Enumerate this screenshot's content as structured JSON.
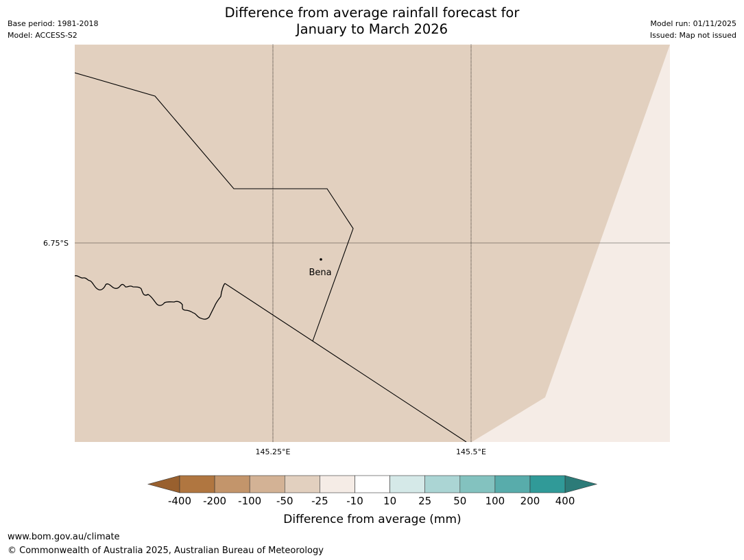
{
  "header": {
    "title_line1": "Difference from average rainfall forecast for",
    "title_line2": "January to March 2026",
    "base_period": "Base period: 1981-2018",
    "model": "Model: ACCESS-S2",
    "model_run": "Model run: 01/11/2025",
    "issued": "Issued: Map not issued"
  },
  "map": {
    "lat_label": "6.75°S",
    "lon_labels": [
      "145.25°E",
      "145.5°E"
    ],
    "place": {
      "name": "Bena"
    },
    "colors": {
      "land_-50_to_-25": "#e2d0bf",
      "land_-25_to_-10": "#f5ece6",
      "gridline": "#000000",
      "boundary": "#000000"
    }
  },
  "colorbar": {
    "title": "Difference from average (mm)",
    "ticks": [
      "-400",
      "-200",
      "-100",
      "-50",
      "-25",
      "-10",
      "10",
      "25",
      "50",
      "100",
      "200",
      "400"
    ],
    "colors": [
      "#99602e",
      "#b07640",
      "#c3956b",
      "#d3b295",
      "#e2d0bf",
      "#f5ece6",
      "#ffffff",
      "#d5e9e8",
      "#abd5d4",
      "#83c2bf",
      "#58acab",
      "#309a98",
      "#2c7b78"
    ]
  },
  "footer": {
    "url": "www.bom.gov.au/climate",
    "copyright": "© Commonwealth of Australia 2025, Australian Bureau of Meteorology"
  }
}
